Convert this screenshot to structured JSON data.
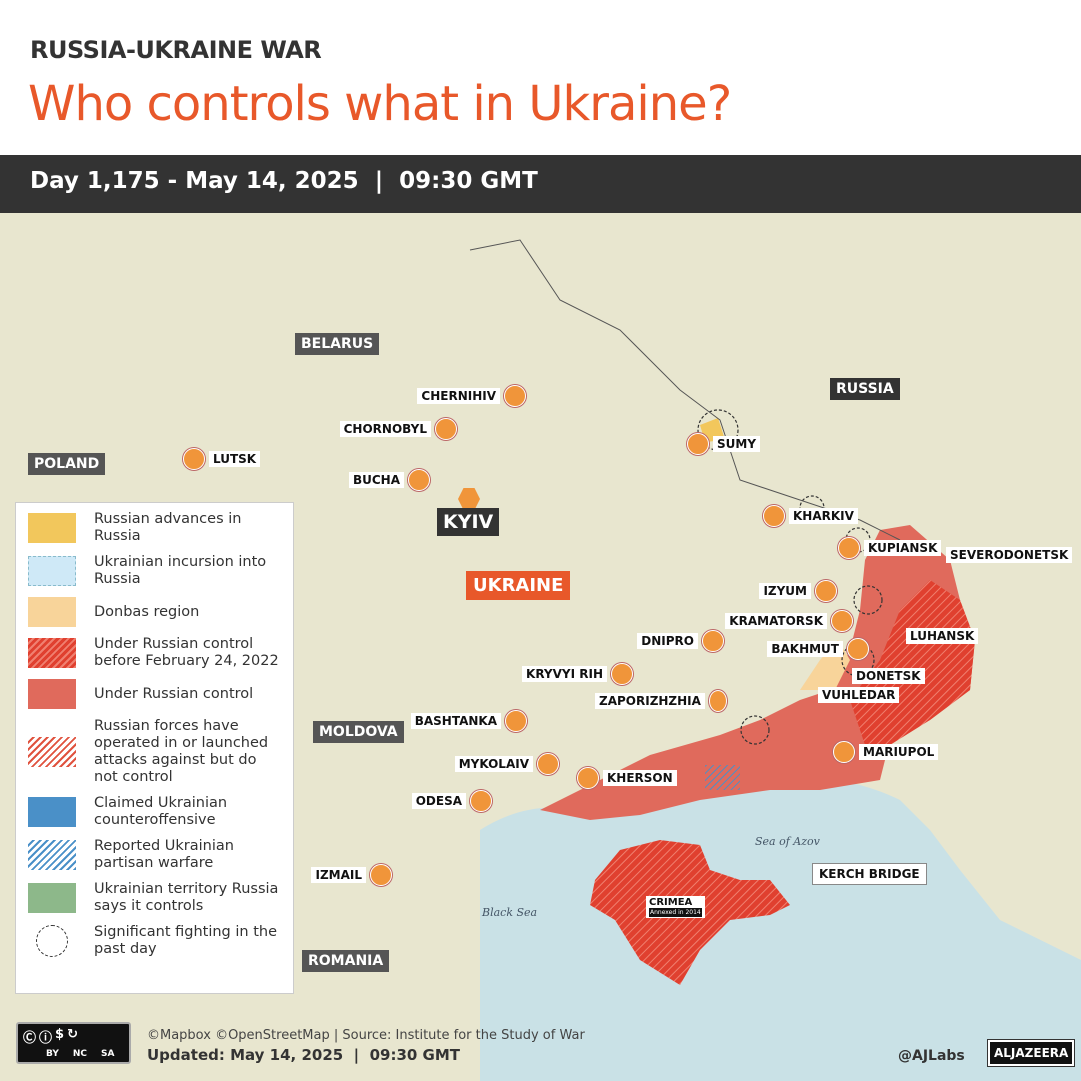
{
  "header": {
    "kicker": "RUSSIA-UKRAINE WAR",
    "title": "Who controls what in Ukraine?",
    "subtitle": "Day 1,175 - May 14, 2025  |  09:30 GMT"
  },
  "countries": {
    "belarus": "BELARUS",
    "russia": "RUSSIA",
    "poland": "POLAND",
    "ukraine": "UKRAINE",
    "moldova": "MOLDOVA",
    "romania": "ROMANIA"
  },
  "seas": {
    "black_sea": "Black Sea",
    "azov": "Sea of Azov"
  },
  "capital": "KYIV",
  "cities": [
    "CHERNIHIV",
    "CHORNOBYL",
    "LUTSK",
    "BUCHA",
    "SUMY",
    "KHARKIV",
    "KUPIANSK",
    "SEVERODONETSK",
    "IZYUM",
    "KRAMATORSK",
    "BAKHMUT",
    "LUHANSK",
    "DNIPRO",
    "KRYVYI RIH",
    "DONETSK",
    "ZAPORIZHZHIA",
    "VUHLEDAR",
    "BASHTANKA",
    "MARIUPOL",
    "MYKOLAIV",
    "KHERSON",
    "ODESA",
    "IZMAIL"
  ],
  "crimea": {
    "label": "CRIMEA",
    "note": "Annexed in 2014"
  },
  "kerch": "KERCH BRIDGE",
  "legend": [
    {
      "label": "Russian advances in Russia",
      "color": "#f2c75c"
    },
    {
      "label": "Ukrainian incursion into Russia",
      "color": "#cfe9f7"
    },
    {
      "label": "Donbas region",
      "color": "#f8d49a"
    },
    {
      "label": "Under Russian control before February 24, 2022",
      "color": "#e0533f"
    },
    {
      "label": "Under Russian control",
      "color": "#e06a5c"
    },
    {
      "label": "Russian forces have operated in or launched attacks against but do not control",
      "color": "#f0a096"
    },
    {
      "label": "Claimed Ukrainian counteroffensive",
      "color": "#4a90c8"
    },
    {
      "label": "Reported Ukrainian partisan warfare",
      "color": "#4a90c8"
    },
    {
      "label": "Ukrainian territory Russia says it controls",
      "color": "#8db88a"
    },
    {
      "label": "Significant fighting in the past day",
      "color": "#333333"
    }
  ],
  "footer": {
    "credits": "©Mapbox ©OpenStreetMap | Source: Institute for the Study of War",
    "updated": "Updated: May 14, 2025  |  09:30 GMT",
    "handle": "@AJLabs",
    "brand": "ALJAZEERA",
    "license": [
      "BY",
      "NC",
      "SA"
    ]
  }
}
